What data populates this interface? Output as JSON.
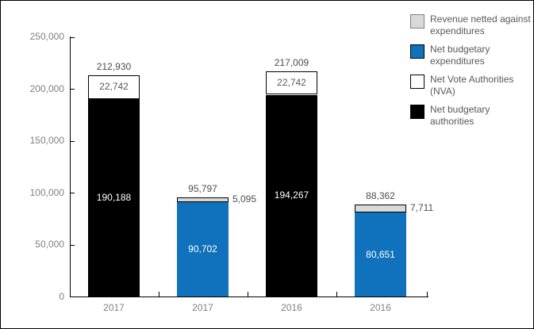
{
  "chart_data": {
    "type": "bar",
    "stacked": true,
    "title": "",
    "xlabel": "",
    "ylabel": "",
    "grid": false,
    "categories": [
      "2017",
      "2017",
      "2016",
      "2016"
    ],
    "y_axis": {
      "min": 0,
      "max": 250000,
      "tick_step": 50000,
      "ticks": [
        {
          "value": 0,
          "label": "0"
        },
        {
          "value": 50000,
          "label": "50,000"
        },
        {
          "value": 100000,
          "label": "100,000"
        },
        {
          "value": 150000,
          "label": "150,000"
        },
        {
          "value": 200000,
          "label": "200,000"
        },
        {
          "value": 250000,
          "label": "250,000"
        }
      ]
    },
    "legend_position": "top-right",
    "legend": [
      {
        "label": "Revenue netted against expenditures",
        "color": "#D9D9D9",
        "border": "#808080"
      },
      {
        "label": "Net budgetary expenditures",
        "color": "#1072BC",
        "border": "#000000"
      },
      {
        "label": "Net Vote Authorities (NVA)",
        "color": "#FFFFFF",
        "border": "#000000"
      },
      {
        "label": "Net budgetary authorities",
        "color": "#000000",
        "border": "#000000"
      }
    ],
    "bars": [
      {
        "category": "2017",
        "total": 212930,
        "total_label": "212,930",
        "segments": [
          {
            "series": "Net budgetary authorities",
            "value": 190188,
            "label": "190,188",
            "color": "#000000",
            "border": "#000000",
            "label_color": "#FFFFFF",
            "label_placement": "inside"
          },
          {
            "series": "Net Vote Authorities (NVA)",
            "value": 22742,
            "label": "22,742",
            "color": "#FFFFFF",
            "border": "#000000",
            "label_color": "#595959",
            "label_placement": "inside"
          }
        ]
      },
      {
        "category": "2017",
        "total": 95797,
        "total_label": "95,797",
        "segments": [
          {
            "series": "Net budgetary expenditures",
            "value": 90702,
            "label": "90,702",
            "color": "#1072BC",
            "border": "none",
            "label_color": "#FFFFFF",
            "label_placement": "inside"
          },
          {
            "series": "Revenue netted against expenditures",
            "value": 5095,
            "label": "5,095",
            "color": "#D9D9D9",
            "border": "#000000",
            "label_color": "#4d4d4d",
            "label_placement": "outside-right"
          }
        ]
      },
      {
        "category": "2016",
        "total": 217009,
        "total_label": "217,009",
        "segments": [
          {
            "series": "Net budgetary authorities",
            "value": 194267,
            "label": "194,267",
            "color": "#000000",
            "border": "#000000",
            "label_color": "#FFFFFF",
            "label_placement": "inside"
          },
          {
            "series": "Net Vote Authorities (NVA)",
            "value": 22742,
            "label": "22,742",
            "color": "#FFFFFF",
            "border": "#000000",
            "label_color": "#595959",
            "label_placement": "inside"
          }
        ]
      },
      {
        "category": "2016",
        "total": 88362,
        "total_label": "88,362",
        "segments": [
          {
            "series": "Net budgetary expenditures",
            "value": 80651,
            "label": "80,651",
            "color": "#1072BC",
            "border": "none",
            "label_color": "#FFFFFF",
            "label_placement": "inside"
          },
          {
            "series": "Revenue netted against expenditures",
            "value": 7711,
            "label": "7,711",
            "color": "#D9D9D9",
            "border": "#000000",
            "label_color": "#4d4d4d",
            "label_placement": "outside-right"
          }
        ]
      }
    ],
    "styles": {
      "background": "#FFFFFF",
      "canvas_border": "#000000",
      "axis_color": "#000000",
      "axis_label_color": "#808080",
      "data_label_color": "#4d4d4d",
      "series_blue": "#1072BC",
      "series_gray": "#D9D9D9",
      "series_black": "#000000",
      "series_white": "#FFFFFF"
    }
  }
}
